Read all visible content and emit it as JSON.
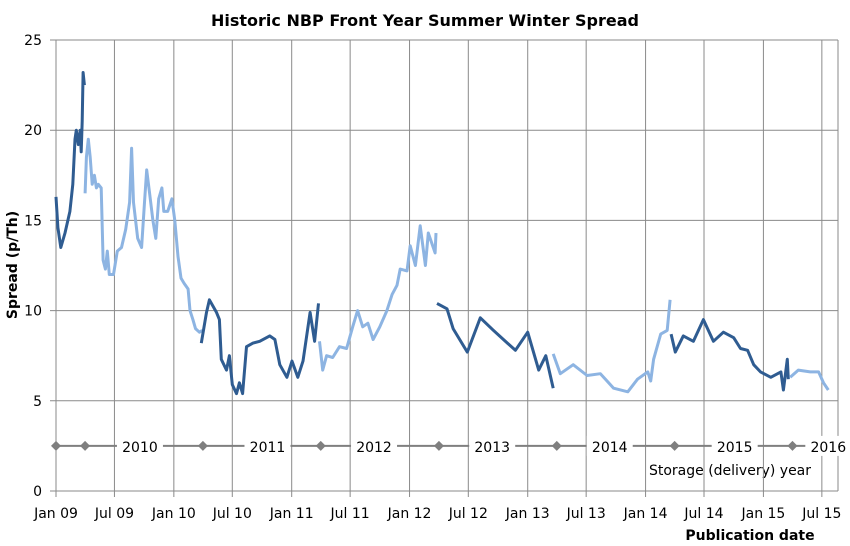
{
  "chart_data": {
    "type": "line",
    "title": "Historic NBP Front Year Summer Winter Spread",
    "xlabel": "Publication date",
    "ylabel": "Spread (p/Th)",
    "ylim": [
      0,
      25
    ],
    "yticks": [
      0,
      5,
      10,
      15,
      20,
      25
    ],
    "xlim": [
      "2009-01-01",
      "2015-08-20"
    ],
    "xticks": [
      {
        "date": "2009-01-01",
        "label": "Jan 09"
      },
      {
        "date": "2009-07-01",
        "label": "Jul 09"
      },
      {
        "date": "2010-01-01",
        "label": "Jan 10"
      },
      {
        "date": "2010-07-01",
        "label": "Jul 10"
      },
      {
        "date": "2011-01-01",
        "label": "Jan 11"
      },
      {
        "date": "2011-07-01",
        "label": "Jul 11"
      },
      {
        "date": "2012-01-01",
        "label": "Jan 12"
      },
      {
        "date": "2012-07-01",
        "label": "Jul 12"
      },
      {
        "date": "2013-01-01",
        "label": "Jan 13"
      },
      {
        "date": "2013-07-01",
        "label": "Jul 13"
      },
      {
        "date": "2014-01-01",
        "label": "Jan 14"
      },
      {
        "date": "2014-07-01",
        "label": "Jul 14"
      },
      {
        "date": "2015-01-01",
        "label": "Jan 15"
      },
      {
        "date": "2015-07-01",
        "label": "Jul 15"
      }
    ],
    "grid": true,
    "colors": {
      "dark": "#2f5c91",
      "light": "#8db4e2",
      "grid": "#8a8a8a",
      "storage_line": "#7f7f7f"
    },
    "series": [
      {
        "shade": "dark",
        "points": [
          [
            "2009-01-01",
            16.3
          ],
          [
            "2009-01-07",
            14.6
          ],
          [
            "2009-01-16",
            13.5
          ],
          [
            "2009-01-29",
            14.3
          ],
          [
            "2009-02-13",
            15.5
          ],
          [
            "2009-02-22",
            17.0
          ],
          [
            "2009-03-01",
            19.5
          ],
          [
            "2009-03-05",
            20.0
          ],
          [
            "2009-03-11",
            19.2
          ],
          [
            "2009-03-17",
            20.0
          ],
          [
            "2009-03-20",
            18.8
          ],
          [
            "2009-03-23",
            20.5
          ],
          [
            "2009-03-26",
            23.2
          ],
          [
            "2009-03-30",
            22.5
          ]
        ]
      },
      {
        "shade": "light",
        "points": [
          [
            "2009-04-01",
            16.5
          ],
          [
            "2009-04-05",
            18.5
          ],
          [
            "2009-04-11",
            19.5
          ],
          [
            "2009-04-17",
            18.5
          ],
          [
            "2009-04-23",
            17.0
          ],
          [
            "2009-04-30",
            17.5
          ],
          [
            "2009-05-06",
            16.8
          ],
          [
            "2009-05-12",
            17.0
          ],
          [
            "2009-05-21",
            16.8
          ],
          [
            "2009-05-27",
            12.8
          ],
          [
            "2009-06-03",
            12.3
          ],
          [
            "2009-06-09",
            13.3
          ],
          [
            "2009-06-15",
            12.0
          ],
          [
            "2009-06-28",
            12.0
          ],
          [
            "2009-07-10",
            13.3
          ],
          [
            "2009-07-23",
            13.5
          ],
          [
            "2009-08-05",
            14.5
          ],
          [
            "2009-08-17",
            16.0
          ],
          [
            "2009-08-23",
            19.0
          ],
          [
            "2009-08-29",
            16.0
          ],
          [
            "2009-09-11",
            14.0
          ],
          [
            "2009-09-23",
            13.5
          ],
          [
            "2009-10-02",
            16.0
          ],
          [
            "2009-10-09",
            17.8
          ],
          [
            "2009-10-18",
            16.5
          ],
          [
            "2009-10-28",
            15.0
          ],
          [
            "2009-11-06",
            14.0
          ],
          [
            "2009-11-15",
            16.2
          ],
          [
            "2009-11-25",
            16.8
          ],
          [
            "2009-12-01",
            15.5
          ],
          [
            "2009-12-13",
            15.5
          ],
          [
            "2009-12-26",
            16.2
          ],
          [
            "2010-01-04",
            15.0
          ],
          [
            "2010-01-14",
            13.0
          ],
          [
            "2010-01-23",
            11.8
          ],
          [
            "2010-02-02",
            11.5
          ],
          [
            "2010-02-14",
            11.2
          ],
          [
            "2010-02-20",
            10.0
          ],
          [
            "2010-03-01",
            9.5
          ],
          [
            "2010-03-09",
            9.0
          ],
          [
            "2010-03-21",
            8.8
          ],
          [
            "2010-03-30",
            8.9
          ]
        ]
      },
      {
        "shade": "dark",
        "points": [
          [
            "2010-03-27",
            8.2
          ],
          [
            "2010-04-12",
            9.9
          ],
          [
            "2010-04-21",
            10.6
          ],
          [
            "2010-05-13",
            9.9
          ],
          [
            "2010-05-22",
            9.5
          ],
          [
            "2010-05-28",
            7.3
          ],
          [
            "2010-06-13",
            6.7
          ],
          [
            "2010-06-22",
            7.5
          ],
          [
            "2010-07-01",
            5.9
          ],
          [
            "2010-07-14",
            5.4
          ],
          [
            "2010-07-23",
            6.0
          ],
          [
            "2010-08-02",
            5.4
          ],
          [
            "2010-08-14",
            8.0
          ],
          [
            "2010-09-03",
            8.2
          ],
          [
            "2010-09-24",
            8.3
          ],
          [
            "2010-10-25",
            8.6
          ],
          [
            "2010-11-10",
            8.4
          ],
          [
            "2010-11-25",
            7.0
          ],
          [
            "2010-12-17",
            6.3
          ],
          [
            "2011-01-02",
            7.2
          ],
          [
            "2011-01-20",
            6.3
          ],
          [
            "2011-02-05",
            7.2
          ],
          [
            "2011-02-27",
            9.9
          ],
          [
            "2011-03-13",
            8.3
          ],
          [
            "2011-03-25",
            10.4
          ]
        ]
      },
      {
        "shade": "light",
        "points": [
          [
            "2011-03-28",
            8.3
          ],
          [
            "2011-04-07",
            6.7
          ],
          [
            "2011-04-19",
            7.5
          ],
          [
            "2011-05-08",
            7.4
          ],
          [
            "2011-05-29",
            8.0
          ],
          [
            "2011-06-20",
            7.9
          ],
          [
            "2011-07-09",
            9.1
          ],
          [
            "2011-07-24",
            10.0
          ],
          [
            "2011-08-09",
            9.1
          ],
          [
            "2011-08-25",
            9.3
          ],
          [
            "2011-09-10",
            8.4
          ],
          [
            "2011-10-01",
            9.1
          ],
          [
            "2011-10-23",
            10.0
          ],
          [
            "2011-11-08",
            10.9
          ],
          [
            "2011-11-23",
            11.4
          ],
          [
            "2011-12-03",
            12.3
          ],
          [
            "2011-12-24",
            12.2
          ],
          [
            "2012-01-03",
            13.6
          ],
          [
            "2012-01-19",
            12.5
          ],
          [
            "2012-02-03",
            14.7
          ],
          [
            "2012-02-19",
            12.5
          ],
          [
            "2012-02-28",
            14.3
          ],
          [
            "2012-03-20",
            13.2
          ],
          [
            "2012-03-23",
            14.3
          ]
        ]
      },
      {
        "shade": "dark",
        "points": [
          [
            "2012-03-26",
            10.4
          ],
          [
            "2012-04-26",
            10.1
          ],
          [
            "2012-05-15",
            9.0
          ],
          [
            "2012-06-28",
            7.7
          ],
          [
            "2012-08-07",
            9.6
          ],
          [
            "2012-09-17",
            8.9
          ],
          [
            "2012-10-30",
            8.2
          ],
          [
            "2012-11-24",
            7.8
          ],
          [
            "2013-01-01",
            8.8
          ],
          [
            "2013-02-04",
            6.7
          ],
          [
            "2013-02-26",
            7.5
          ],
          [
            "2013-03-21",
            5.7
          ]
        ]
      },
      {
        "shade": "light",
        "points": [
          [
            "2013-03-21",
            7.6
          ],
          [
            "2013-04-12",
            6.5
          ],
          [
            "2013-05-22",
            7.0
          ],
          [
            "2013-07-04",
            6.4
          ],
          [
            "2013-08-14",
            6.5
          ],
          [
            "2013-09-24",
            5.7
          ],
          [
            "2013-11-07",
            5.5
          ],
          [
            "2013-12-07",
            6.2
          ],
          [
            "2014-01-08",
            6.6
          ],
          [
            "2014-01-17",
            6.1
          ],
          [
            "2014-01-26",
            7.3
          ],
          [
            "2014-02-17",
            8.7
          ],
          [
            "2014-03-09",
            8.9
          ],
          [
            "2014-03-18",
            10.6
          ]
        ]
      },
      {
        "shade": "dark",
        "points": [
          [
            "2014-03-21",
            8.7
          ],
          [
            "2014-04-03",
            7.7
          ],
          [
            "2014-04-28",
            8.6
          ],
          [
            "2014-05-29",
            8.3
          ],
          [
            "2014-06-29",
            9.5
          ],
          [
            "2014-07-30",
            8.3
          ],
          [
            "2014-08-30",
            8.8
          ],
          [
            "2014-10-01",
            8.5
          ],
          [
            "2014-10-22",
            7.9
          ],
          [
            "2014-11-13",
            7.8
          ],
          [
            "2014-12-02",
            7.0
          ],
          [
            "2014-12-23",
            6.6
          ],
          [
            "2015-01-24",
            6.3
          ],
          [
            "2015-02-24",
            6.6
          ],
          [
            "2015-03-04",
            5.6
          ],
          [
            "2015-03-16",
            7.3
          ],
          [
            "2015-03-19",
            6.2
          ]
        ]
      },
      {
        "shade": "light",
        "points": [
          [
            "2015-03-25",
            6.3
          ],
          [
            "2015-04-19",
            6.7
          ],
          [
            "2015-05-26",
            6.6
          ],
          [
            "2015-06-21",
            6.6
          ],
          [
            "2015-07-06",
            6.0
          ],
          [
            "2015-07-21",
            5.6
          ]
        ]
      }
    ],
    "storage_years": {
      "title": "Storage (delivery) year",
      "level": 2.5,
      "markers": [
        "2009-01-01",
        "2009-04-01",
        "2010-04-01",
        "2011-04-01",
        "2012-04-01",
        "2013-04-01",
        "2014-04-01",
        "2015-04-01"
      ],
      "labels": [
        {
          "date": "2009-09-18",
          "text": "2010"
        },
        {
          "date": "2010-10-18",
          "text": "2011"
        },
        {
          "date": "2011-09-13",
          "text": "2012"
        },
        {
          "date": "2012-09-13",
          "text": "2013"
        },
        {
          "date": "2013-09-12",
          "text": "2014"
        },
        {
          "date": "2014-10-04",
          "text": "2015"
        },
        {
          "date": "2015-07-21",
          "text": "2016"
        }
      ]
    }
  }
}
